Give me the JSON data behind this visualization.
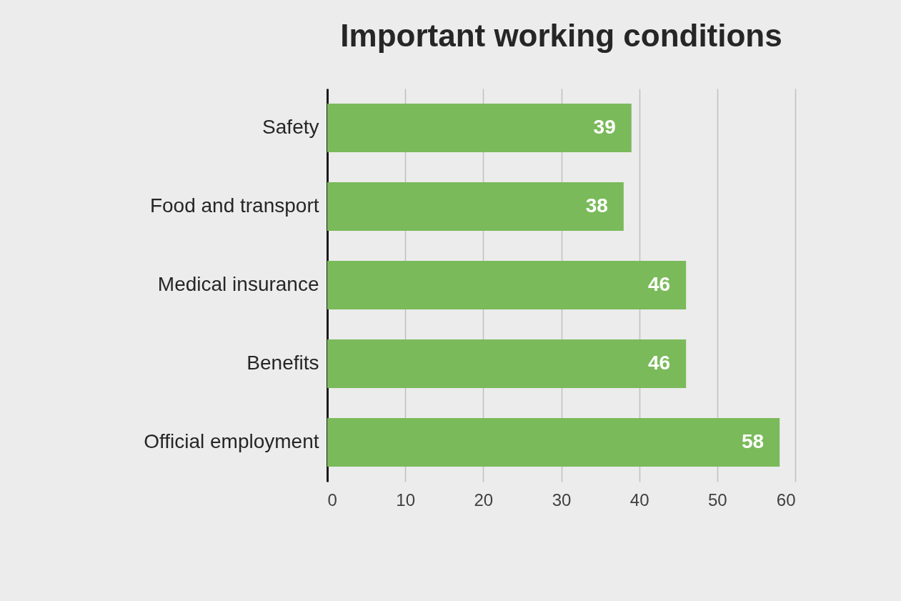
{
  "chart_data": {
    "type": "bar",
    "orientation": "horizontal",
    "title": "Important working conditions",
    "categories": [
      "Safety",
      "Food and transport",
      "Medical insurance",
      "Benefits",
      "Official employment"
    ],
    "values": [
      39,
      38,
      46,
      46,
      58
    ],
    "color": "#7aba5a",
    "data_labels": true,
    "xlim": [
      0,
      60
    ],
    "xticks": [
      0,
      10,
      20,
      30,
      40,
      50,
      60
    ],
    "grid": true
  }
}
